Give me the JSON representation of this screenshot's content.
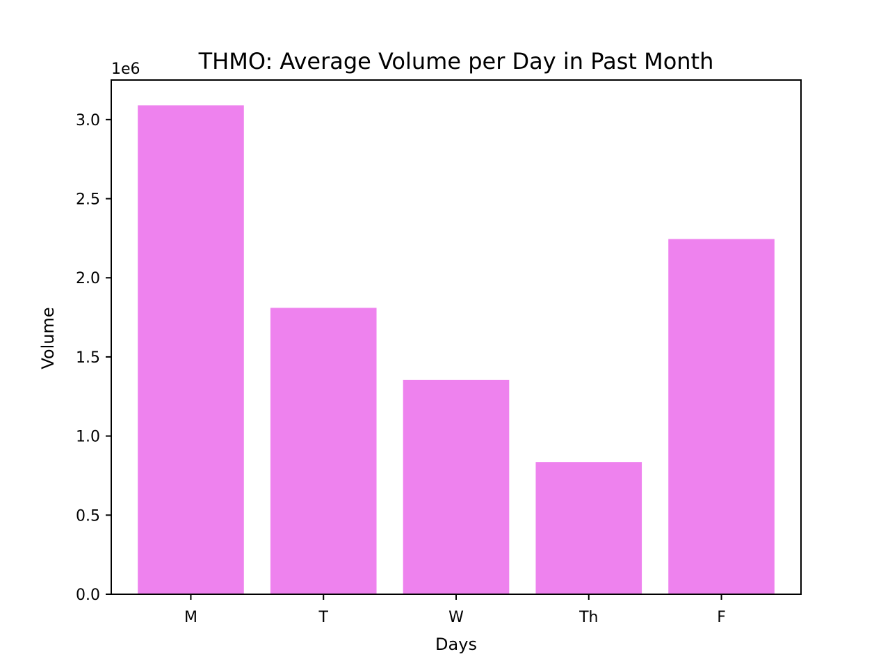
{
  "chart_data": {
    "type": "bar",
    "title": "THMO: Average Volume per Day in Past Month",
    "xlabel": "Days",
    "ylabel": "Volume",
    "y_offset_label": "1e6",
    "categories": [
      "M",
      "T",
      "W",
      "Th",
      "F"
    ],
    "values": [
      3090000,
      1810000,
      1355000,
      835000,
      2245000
    ],
    "ylim": [
      0,
      3250000
    ],
    "yticks": [
      0,
      500000,
      1000000,
      1500000,
      2000000,
      2500000,
      3000000
    ],
    "ytick_labels": [
      "0.0",
      "0.5",
      "1.0",
      "1.5",
      "2.0",
      "2.5",
      "3.0"
    ],
    "grid": false,
    "bar_color": "#ee82ee"
  }
}
